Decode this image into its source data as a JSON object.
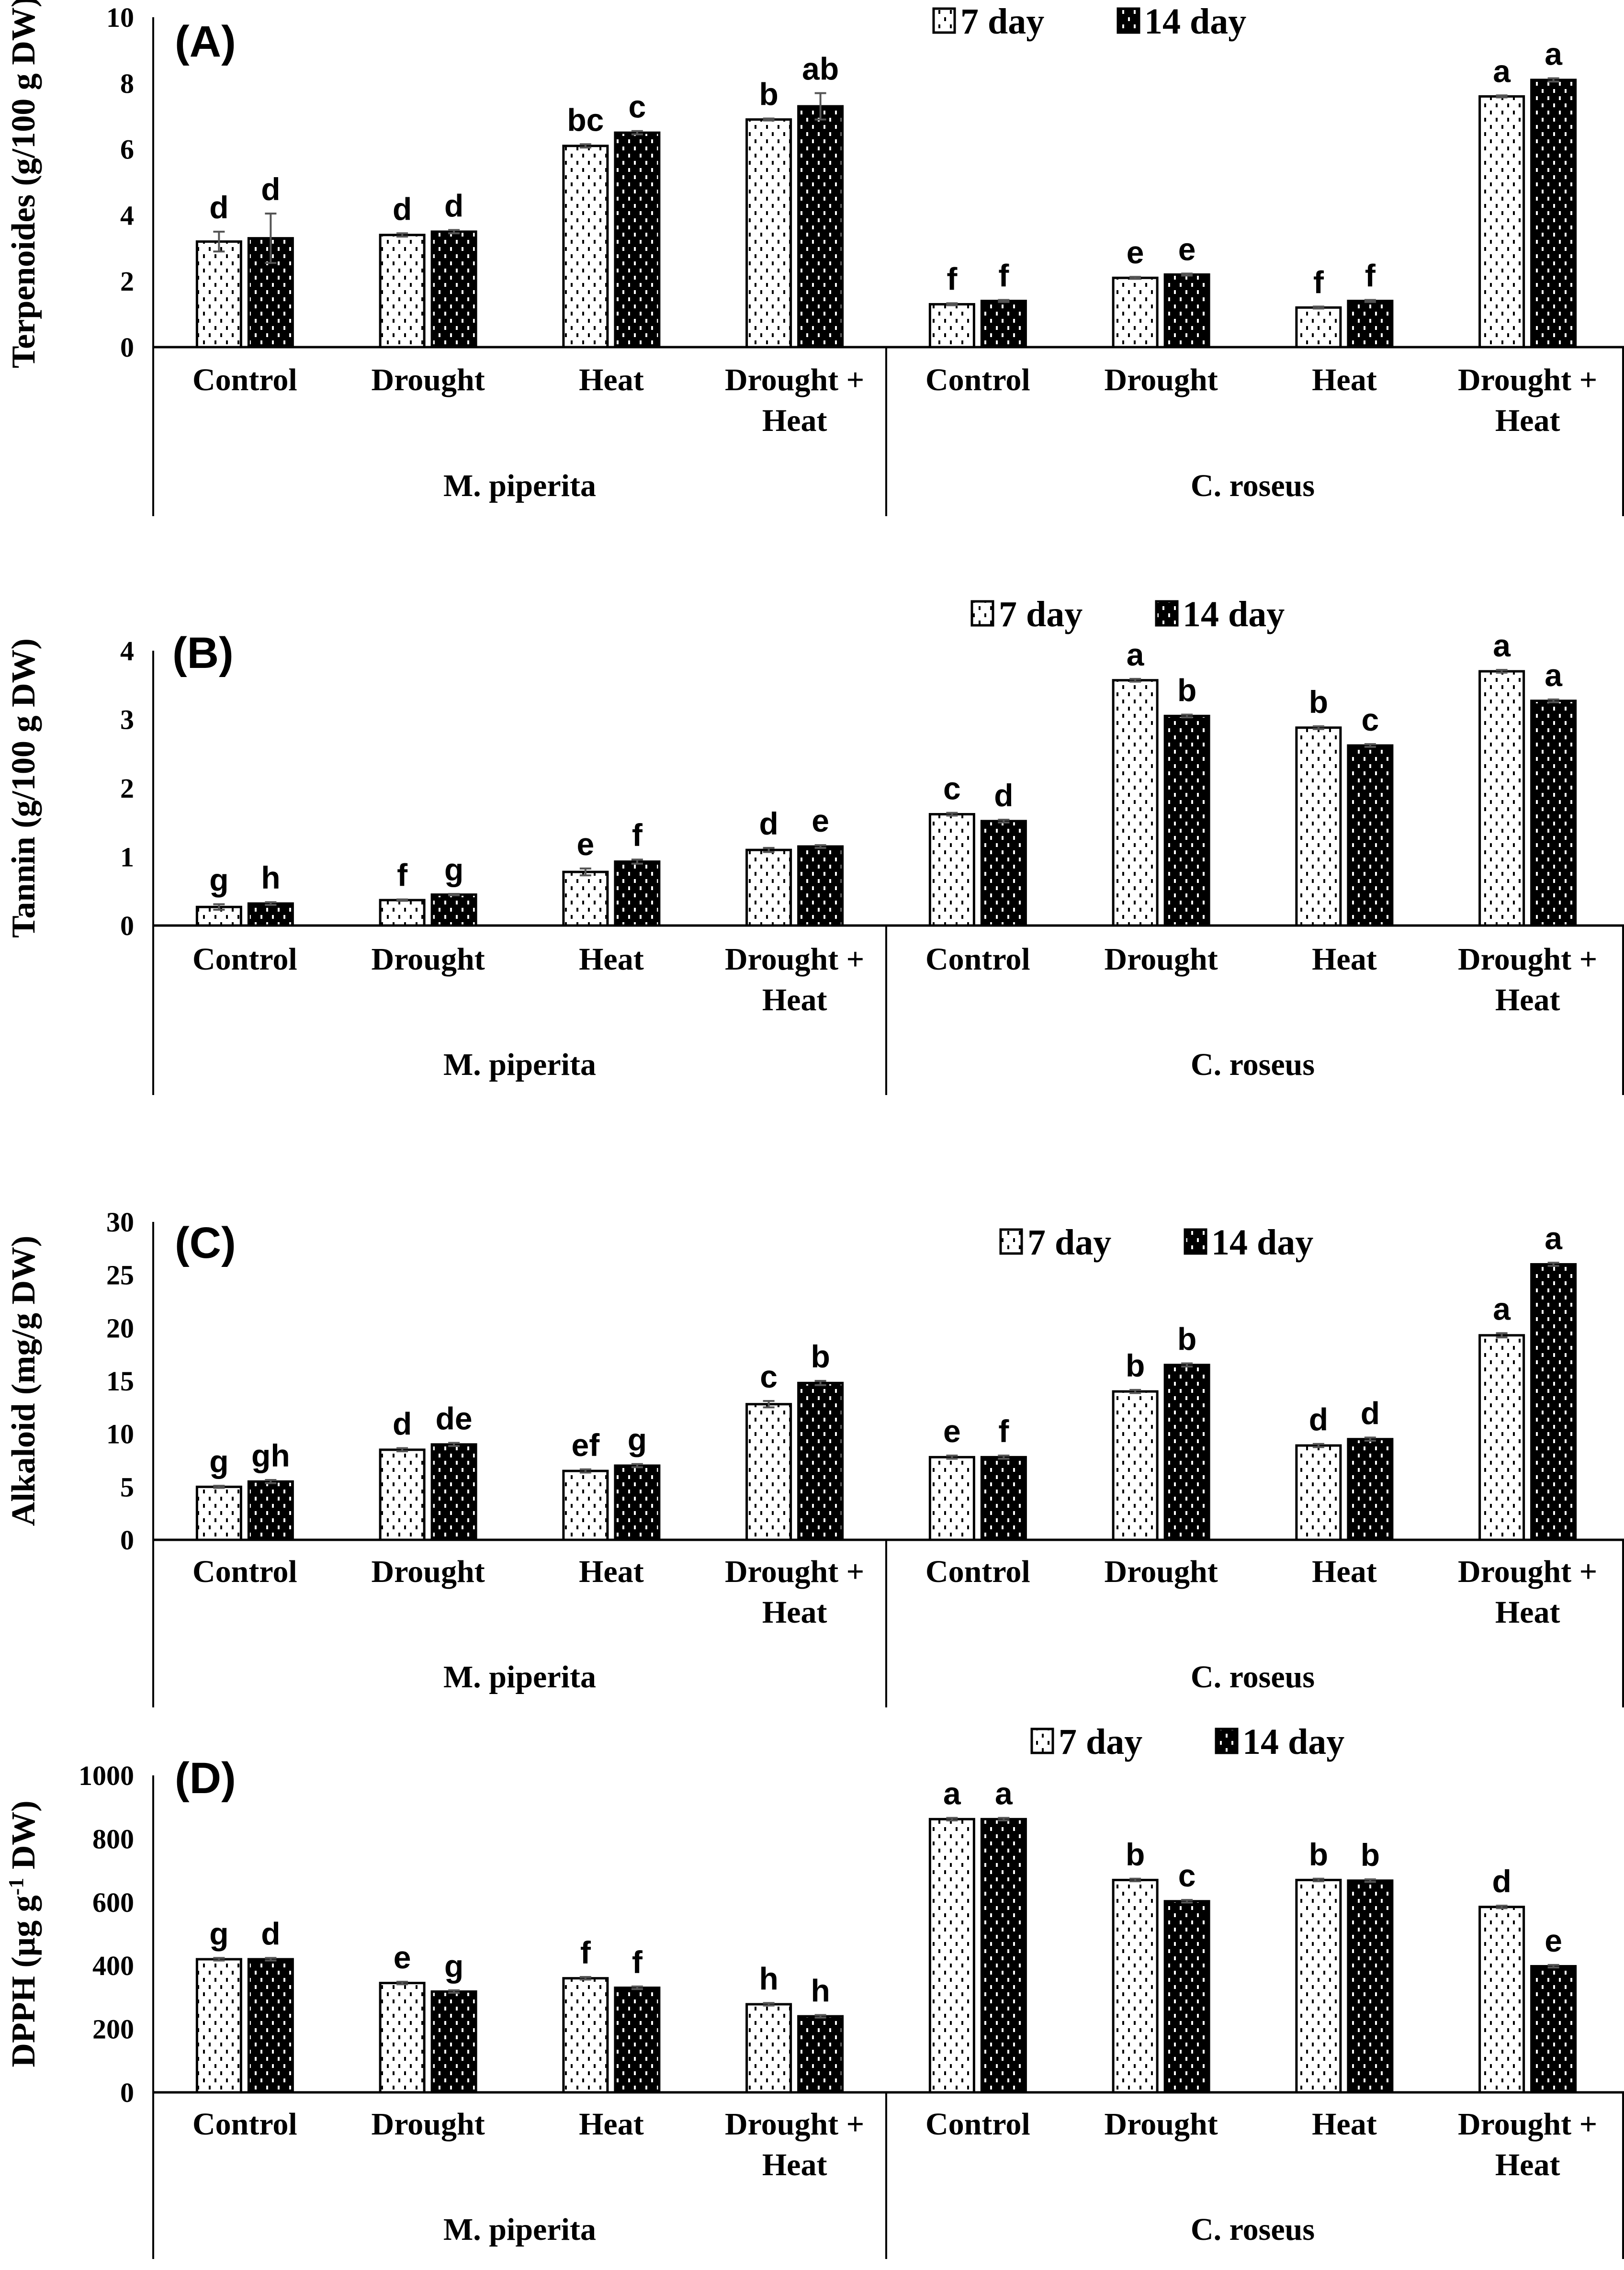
{
  "chart_data": [
    {
      "type": "bar",
      "panel": "(A)",
      "ylabel": "Terpenoides (g/100 g DW)",
      "ylim": [
        0,
        10
      ],
      "yticks": [
        0,
        2,
        4,
        6,
        8,
        10
      ],
      "groups": [
        "M. piperita",
        "C. roseus"
      ],
      "categories": [
        "Control",
        "Drought",
        "Heat",
        "Drought + Heat",
        "Control",
        "Drought",
        "Heat",
        "Drought + Heat"
      ],
      "legend": [
        "7 day",
        "14 day"
      ],
      "legend_position": "top-right",
      "series": [
        {
          "name": "7 day",
          "values": [
            3.2,
            3.4,
            6.1,
            6.9,
            1.3,
            2.1,
            1.2,
            7.6
          ],
          "letters": [
            "d",
            "d",
            "bc",
            "b",
            "f",
            "e",
            "f",
            "a"
          ],
          "errors": [
            0.3,
            0.05,
            0.05,
            0.03,
            0.03,
            0.03,
            0.03,
            0.03
          ]
        },
        {
          "name": "14 day",
          "values": [
            3.3,
            3.5,
            6.5,
            7.3,
            1.4,
            2.2,
            1.4,
            8.1
          ],
          "letters": [
            "d",
            "d",
            "c",
            "ab",
            "f",
            "e",
            "f",
            "a"
          ],
          "errors": [
            0.75,
            0.05,
            0.05,
            0.4,
            0.03,
            0.03,
            0.03,
            0.05
          ]
        }
      ]
    },
    {
      "type": "bar",
      "panel": "(B)",
      "ylabel": "Tannin (g/100 g DW)",
      "ylim": [
        0,
        4
      ],
      "yticks": [
        0,
        1,
        2,
        3,
        4
      ],
      "groups": [
        "M. piperita",
        "C. roseus"
      ],
      "categories": [
        "Control",
        "Drought",
        "Heat",
        "Drought + Heat",
        "Control",
        "Drought",
        "Heat",
        "Drought + Heat"
      ],
      "legend": [
        "7 day",
        "14 day"
      ],
      "legend_position": "top-right",
      "series": [
        {
          "name": "7 day",
          "values": [
            0.27,
            0.37,
            0.78,
            1.1,
            1.62,
            3.57,
            2.88,
            3.7
          ],
          "letters": [
            "g",
            "f",
            "e",
            "d",
            "c",
            "a",
            "b",
            "a"
          ],
          "errors": [
            0.04,
            0.01,
            0.05,
            0.03,
            0.02,
            0.02,
            0.02,
            0.02
          ]
        },
        {
          "name": "14 day",
          "values": [
            0.32,
            0.45,
            0.93,
            1.15,
            1.52,
            3.05,
            2.62,
            3.27
          ],
          "letters": [
            "h",
            "g",
            "f",
            "e",
            "d",
            "b",
            "c",
            "a"
          ],
          "errors": [
            0.02,
            0.01,
            0.03,
            0.02,
            0.02,
            0.02,
            0.02,
            0.02
          ]
        }
      ]
    },
    {
      "type": "bar",
      "panel": "(C)",
      "ylabel": "Alkaloid (mg/g DW)",
      "ylim": [
        0,
        30
      ],
      "yticks": [
        0,
        5,
        10,
        15,
        20,
        25,
        30
      ],
      "groups": [
        "M. piperita",
        "C. roseus"
      ],
      "categories": [
        "Control",
        "Drought",
        "Heat",
        "Drought + Heat",
        "Control",
        "Drought",
        "Heat",
        "Drought + Heat"
      ],
      "legend": [
        "7 day",
        "14 day"
      ],
      "legend_position": "top-right",
      "series": [
        {
          "name": "7 day",
          "values": [
            5.0,
            8.5,
            6.5,
            12.8,
            7.8,
            14.0,
            8.9,
            19.3
          ],
          "letters": [
            "g",
            "d",
            "ef",
            "c",
            "e",
            "b",
            "d",
            "a"
          ],
          "errors": [
            0.1,
            0.15,
            0.15,
            0.3,
            0.15,
            0.15,
            0.15,
            0.2
          ]
        },
        {
          "name": "14 day",
          "values": [
            5.5,
            9.0,
            7.0,
            14.8,
            7.8,
            16.5,
            9.5,
            26.0
          ],
          "letters": [
            "gh",
            "de",
            "g",
            "b",
            "f",
            "b",
            "d",
            "a"
          ],
          "errors": [
            0.15,
            0.15,
            0.15,
            0.2,
            0.15,
            0.15,
            0.15,
            0.15
          ]
        }
      ]
    },
    {
      "type": "bar",
      "panel": "(D)",
      "ylabel": "DPPH (µg g",
      "ylabel_sup": "-1",
      "ylabel_end": " DW)",
      "ylim": [
        0,
        1000
      ],
      "yticks": [
        0,
        200,
        400,
        600,
        800,
        1000
      ],
      "groups": [
        "M. piperita",
        "C. roseus"
      ],
      "categories": [
        "Control",
        "Drought",
        "Heat",
        "Drought + Heat",
        "Control",
        "Drought",
        "Heat",
        "Drought + Heat"
      ],
      "legend": [
        "7 day",
        "14 day"
      ],
      "legend_position": "top-right",
      "series": [
        {
          "name": "7 day",
          "values": [
            420,
            345,
            360,
            278,
            862,
            670,
            670,
            585
          ],
          "letters": [
            "g",
            "e",
            "f",
            "h",
            "a",
            "b",
            "b",
            "d"
          ],
          "errors": [
            4,
            4,
            4,
            4,
            4,
            4,
            4,
            4
          ]
        },
        {
          "name": "14 day",
          "values": [
            420,
            318,
            330,
            240,
            862,
            603,
            668,
            398
          ],
          "letters": [
            "d",
            "g",
            "f",
            "h",
            "a",
            "c",
            "b",
            "e"
          ],
          "errors": [
            4,
            4,
            4,
            4,
            4,
            4,
            4,
            4
          ]
        }
      ]
    }
  ]
}
